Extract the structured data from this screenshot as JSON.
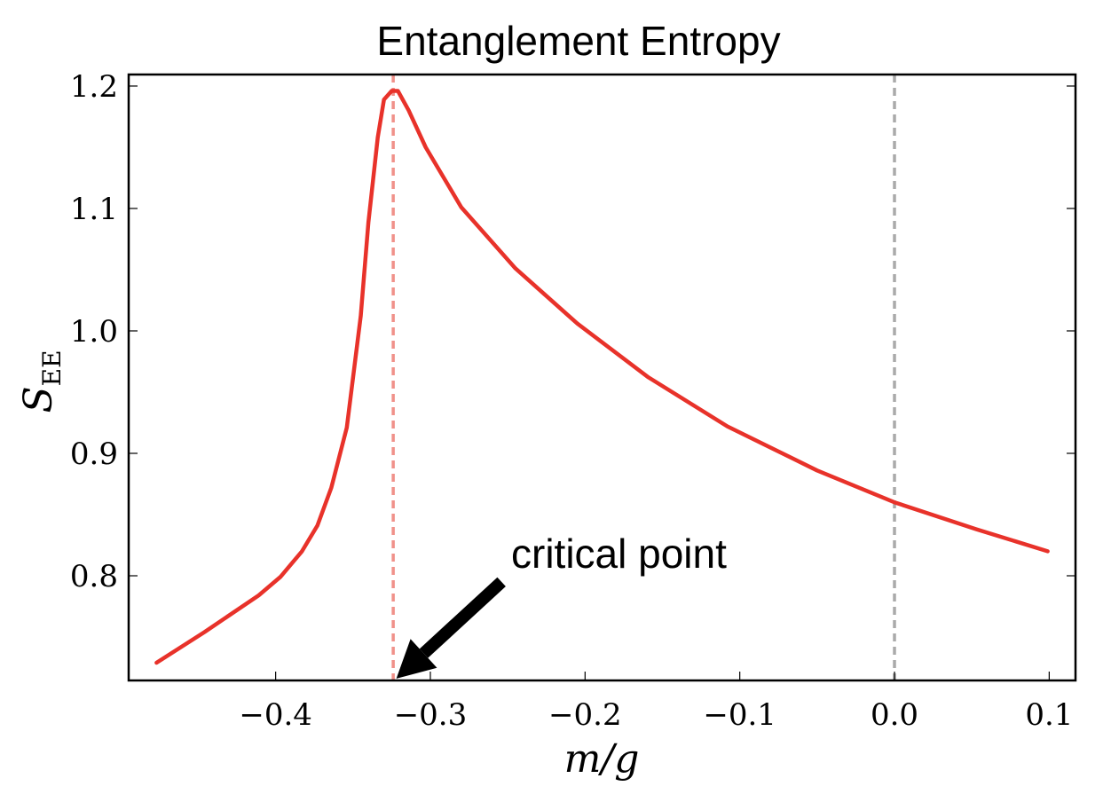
{
  "chart_data": {
    "type": "line",
    "title": "Entanglement Entropy",
    "xlabel": "m/g",
    "ylabel": {
      "main": "S",
      "subscript": "EE"
    },
    "xlim": [
      -0.495,
      0.117
    ],
    "ylim": [
      0.7145,
      1.2094
    ],
    "xticks": [
      -0.4,
      -0.3,
      -0.2,
      -0.1,
      0.0,
      0.1
    ],
    "xtick_labels": [
      "−0.4",
      "−0.3",
      "−0.2",
      "−0.1",
      "0.0",
      "0.1"
    ],
    "yticks": [
      0.8,
      0.9,
      1.0,
      1.1,
      1.2
    ],
    "ytick_labels": [
      "0.8",
      "0.9",
      "1.0",
      "1.1",
      "1.2"
    ],
    "grid": false,
    "series": [
      {
        "name": "S_EE",
        "color": "#e8322a",
        "x": [
          -0.477,
          -0.446,
          -0.411,
          -0.397,
          -0.383,
          -0.373,
          -0.364,
          -0.354,
          -0.345,
          -0.34,
          -0.334,
          -0.33,
          -0.325,
          -0.321,
          -0.314,
          -0.303,
          -0.28,
          -0.245,
          -0.205,
          -0.159,
          -0.108,
          -0.05,
          0.0,
          0.053,
          0.099
        ],
        "y": [
          0.729,
          0.754,
          0.784,
          0.799,
          0.82,
          0.841,
          0.872,
          0.921,
          1.012,
          1.089,
          1.158,
          1.189,
          1.196,
          1.196,
          1.18,
          1.15,
          1.101,
          1.051,
          1.006,
          0.962,
          0.922,
          0.886,
          0.86,
          0.838,
          0.82
        ]
      }
    ],
    "vlines": [
      {
        "name": "critical-line",
        "x": -0.324,
        "color": "#f0918a"
      },
      {
        "name": "zero-line",
        "x": 0.0,
        "color": "#aaaaaa"
      }
    ],
    "annotation": {
      "text": "critical point",
      "xy": [
        -0.322,
        0.716
      ],
      "xytext": [
        -0.254,
        0.795
      ]
    }
  }
}
